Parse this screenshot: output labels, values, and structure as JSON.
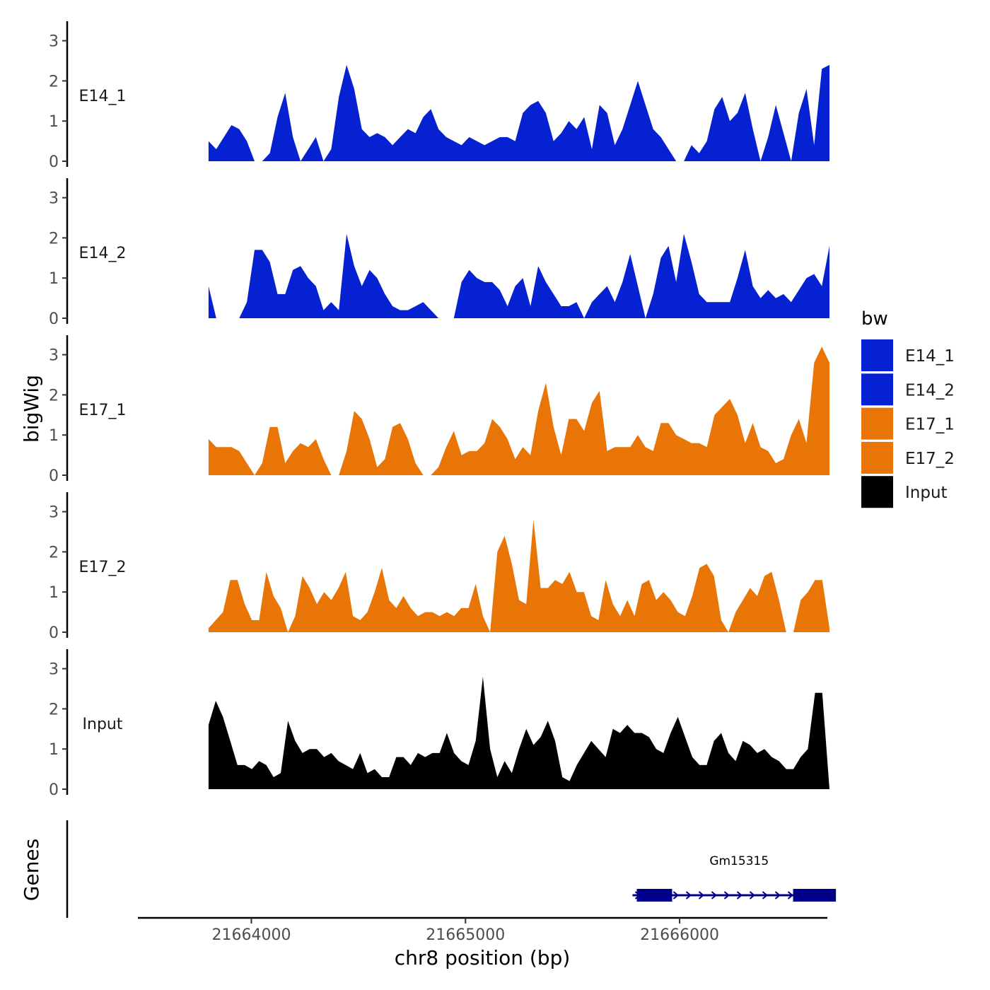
{
  "chart_data": {
    "type": "area",
    "ylabel": "bigWig",
    "xlabel": "chr8 position (bp)",
    "genes_label": "Genes",
    "x_range": [
      21663800,
      21666700
    ],
    "xlim": [
      21663470,
      21666690
    ],
    "ylim": [
      0,
      3.4
    ],
    "y_ticks": [
      "0",
      "1",
      "2",
      "3"
    ],
    "x_ticks": [
      {
        "value": 21664000,
        "label": "21664000"
      },
      {
        "value": 21665000,
        "label": "21665000"
      },
      {
        "value": 21666000,
        "label": "21666000"
      }
    ],
    "legend": {
      "title": "bw",
      "entries": [
        {
          "name": "E14_1",
          "color": "#0621d1"
        },
        {
          "name": "E14_2",
          "color": "#0621d1"
        },
        {
          "name": "E17_1",
          "color": "#e87506"
        },
        {
          "name": "E17_2",
          "color": "#e87506"
        },
        {
          "name": "Input",
          "color": "#000000"
        }
      ]
    },
    "tracks": [
      {
        "name": "E14_1",
        "color": "#0621d1",
        "values": [
          0.5,
          0.3,
          0.6,
          0.9,
          0.8,
          0.5,
          0.0,
          0.0,
          0.2,
          1.1,
          1.7,
          0.6,
          0.0,
          0.3,
          0.6,
          0.0,
          0.3,
          1.6,
          2.4,
          1.8,
          0.8,
          0.6,
          0.7,
          0.6,
          0.4,
          0.6,
          0.8,
          0.7,
          1.1,
          1.3,
          0.8,
          0.6,
          0.5,
          0.4,
          0.6,
          0.5,
          0.4,
          0.5,
          0.6,
          0.6,
          0.5,
          1.2,
          1.4,
          1.5,
          1.2,
          0.5,
          0.7,
          1.0,
          0.8,
          1.1,
          0.3,
          1.4,
          1.2,
          0.4,
          0.8,
          1.4,
          2.0,
          1.4,
          0.8,
          0.6,
          0.3,
          0.0,
          0.0,
          0.4,
          0.2,
          0.5,
          1.3,
          1.6,
          1.0,
          1.2,
          1.7,
          0.8,
          0.0,
          0.6,
          1.4,
          0.7,
          0.0,
          1.2,
          1.8,
          0.4,
          2.3,
          2.4
        ]
      },
      {
        "name": "E14_2",
        "color": "#0621d1",
        "values": [
          0.8,
          0.0,
          0.0,
          0.0,
          0.0,
          0.4,
          1.7,
          1.7,
          1.4,
          0.6,
          0.6,
          1.2,
          1.3,
          1.0,
          0.8,
          0.2,
          0.4,
          0.2,
          2.1,
          1.3,
          0.8,
          1.2,
          1.0,
          0.6,
          0.3,
          0.2,
          0.2,
          0.3,
          0.4,
          0.2,
          0.0,
          0.0,
          0.0,
          0.9,
          1.2,
          1.0,
          0.9,
          0.9,
          0.7,
          0.3,
          0.8,
          1.0,
          0.3,
          1.3,
          0.9,
          0.6,
          0.3,
          0.3,
          0.4,
          0.0,
          0.4,
          0.6,
          0.8,
          0.4,
          0.9,
          1.6,
          0.8,
          0.0,
          0.6,
          1.5,
          1.8,
          0.9,
          2.1,
          1.4,
          0.6,
          0.4,
          0.4,
          0.4,
          0.4,
          1.0,
          1.7,
          0.8,
          0.5,
          0.7,
          0.5,
          0.6,
          0.4,
          0.7,
          1.0,
          1.1,
          0.8,
          1.8
        ]
      },
      {
        "name": "E17_1",
        "color": "#e87506",
        "values": [
          0.9,
          0.7,
          0.7,
          0.7,
          0.6,
          0.3,
          0.0,
          0.3,
          1.2,
          1.2,
          0.3,
          0.6,
          0.8,
          0.7,
          0.9,
          0.4,
          0.0,
          0.0,
          0.6,
          1.6,
          1.4,
          0.9,
          0.2,
          0.4,
          1.2,
          1.3,
          0.9,
          0.3,
          0.0,
          0.0,
          0.2,
          0.7,
          1.1,
          0.5,
          0.6,
          0.6,
          0.8,
          1.4,
          1.2,
          0.9,
          0.4,
          0.7,
          0.5,
          1.6,
          2.3,
          1.2,
          0.5,
          1.4,
          1.4,
          1.1,
          1.8,
          2.1,
          0.6,
          0.7,
          0.7,
          0.7,
          1.0,
          0.7,
          0.6,
          1.3,
          1.3,
          1.0,
          0.9,
          0.8,
          0.8,
          0.7,
          1.5,
          1.7,
          1.9,
          1.5,
          0.8,
          1.3,
          0.7,
          0.6,
          0.3,
          0.4,
          1.0,
          1.4,
          0.8,
          2.8,
          3.2,
          2.8
        ]
      },
      {
        "name": "E17_2",
        "color": "#e87506",
        "values": [
          0.1,
          0.3,
          0.5,
          1.3,
          1.3,
          0.7,
          0.3,
          0.3,
          1.5,
          0.9,
          0.6,
          0.0,
          0.4,
          1.4,
          1.1,
          0.7,
          1.0,
          0.8,
          1.1,
          1.5,
          0.4,
          0.3,
          0.5,
          1.0,
          1.6,
          0.8,
          0.6,
          0.9,
          0.6,
          0.4,
          0.5,
          0.5,
          0.4,
          0.5,
          0.4,
          0.6,
          0.6,
          1.2,
          0.4,
          0.0,
          2.0,
          2.4,
          1.7,
          0.8,
          0.7,
          2.8,
          1.1,
          1.1,
          1.3,
          1.2,
          1.5,
          1.0,
          1.0,
          0.4,
          0.3,
          1.3,
          0.7,
          0.4,
          0.8,
          0.4,
          1.2,
          1.3,
          0.8,
          1.0,
          0.8,
          0.5,
          0.4,
          0.9,
          1.6,
          1.7,
          1.4,
          0.3,
          0.0,
          0.5,
          0.8,
          1.1,
          0.9,
          1.4,
          1.5,
          0.8,
          0.0,
          0.0,
          0.8,
          1.0,
          1.3,
          1.3,
          0.1
        ]
      },
      {
        "name": "Input",
        "color": "#000000",
        "values": [
          1.6,
          2.2,
          1.8,
          1.2,
          0.6,
          0.6,
          0.5,
          0.7,
          0.6,
          0.3,
          0.4,
          1.7,
          1.2,
          0.9,
          1.0,
          1.0,
          0.8,
          0.9,
          0.7,
          0.6,
          0.5,
          0.9,
          0.4,
          0.5,
          0.3,
          0.3,
          0.8,
          0.8,
          0.6,
          0.9,
          0.8,
          0.9,
          0.9,
          1.4,
          0.9,
          0.7,
          0.6,
          1.2,
          2.8,
          1.0,
          0.3,
          0.7,
          0.4,
          1.0,
          1.5,
          1.1,
          1.3,
          1.7,
          1.2,
          0.3,
          0.2,
          0.6,
          0.9,
          1.2,
          1.0,
          0.8,
          1.5,
          1.4,
          1.6,
          1.4,
          1.4,
          1.3,
          1.0,
          0.9,
          1.4,
          1.8,
          1.3,
          0.8,
          0.6,
          0.6,
          1.2,
          1.4,
          0.9,
          0.7,
          1.2,
          1.1,
          0.9,
          1.0,
          0.8,
          0.7,
          0.5,
          0.5,
          0.8,
          1.0,
          2.4,
          2.4,
          0.0
        ]
      }
    ],
    "gene": {
      "name": "Gm15315",
      "color": "#00008b",
      "start": 21665780,
      "end": 21666710,
      "exons": [
        [
          21665800,
          21665965
        ],
        [
          21666530,
          21666730
        ]
      ],
      "strand": "+"
    }
  }
}
